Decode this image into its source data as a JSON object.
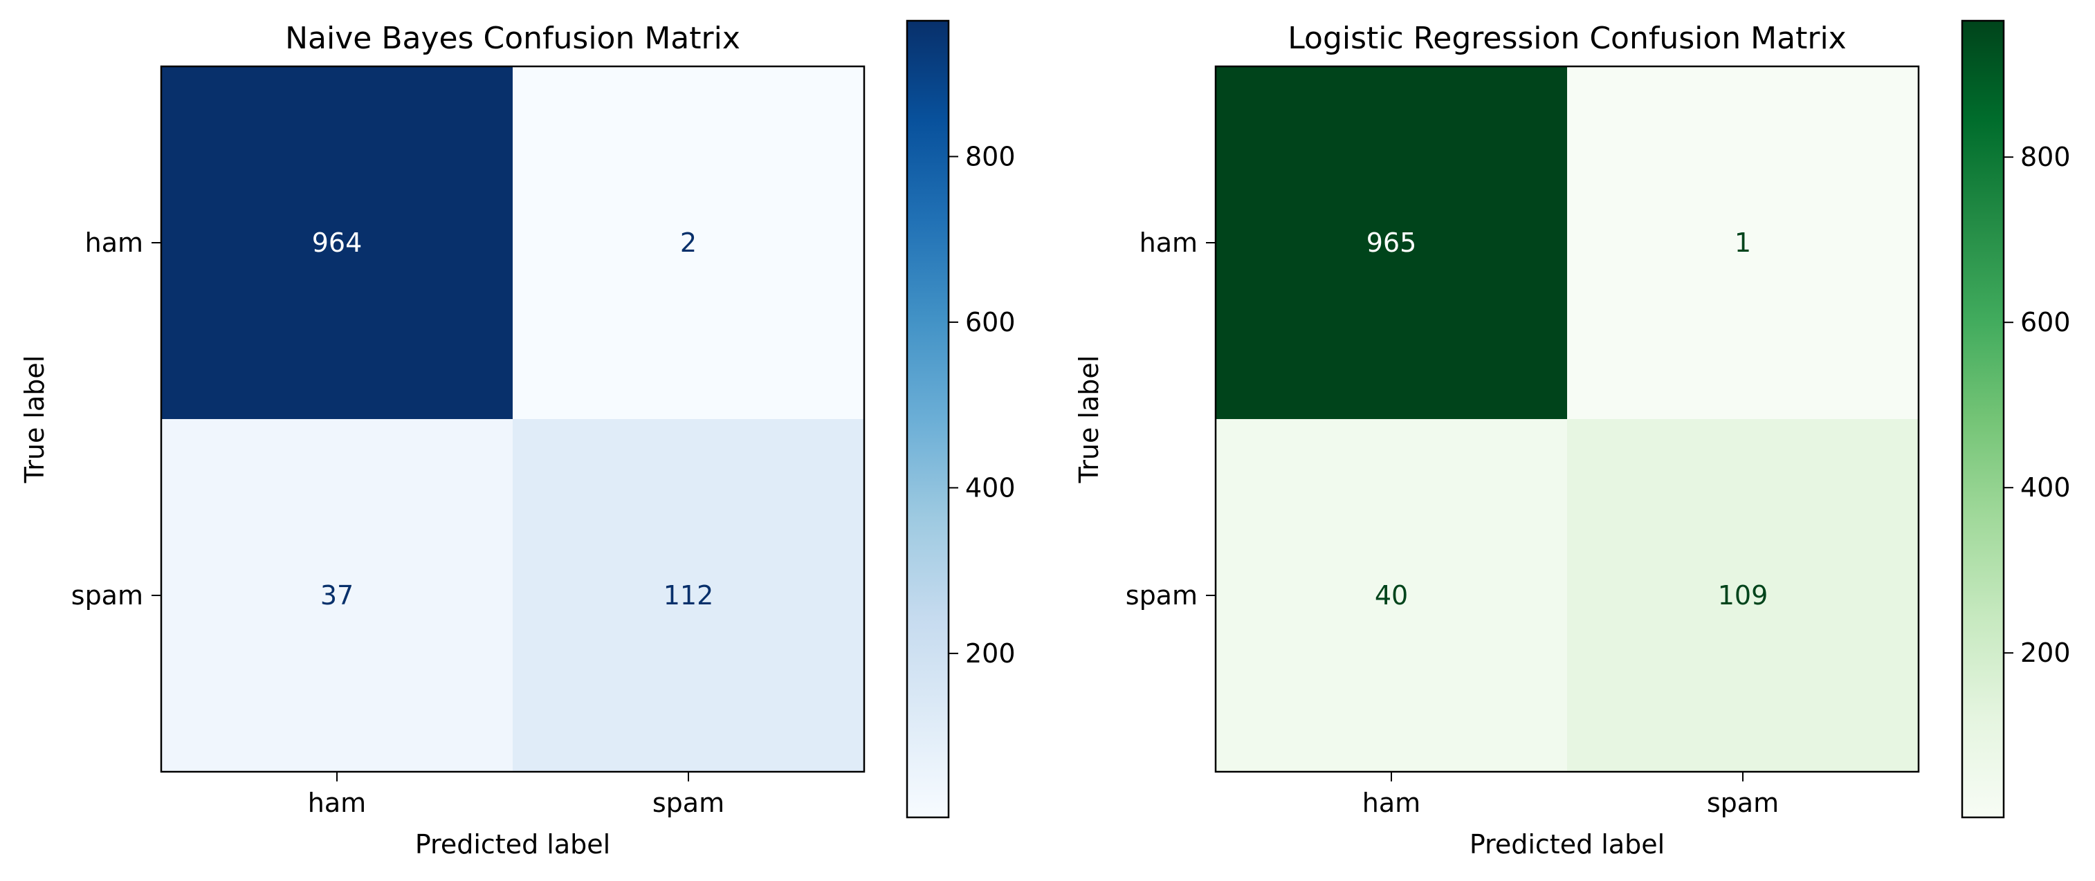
{
  "chart_data": [
    {
      "type": "heatmap",
      "title": "Naive Bayes Confusion Matrix",
      "xlabel": "Predicted label",
      "ylabel": "True label",
      "x_categories": [
        "ham",
        "spam"
      ],
      "y_categories": [
        "ham",
        "spam"
      ],
      "values": [
        [
          964,
          2
        ],
        [
          37,
          112
        ]
      ],
      "colormap": "Blues",
      "low_color": "#f7fbff",
      "high_color": "#08306b",
      "colorbar_range": [
        2,
        964
      ],
      "colorbar_ticks": [
        200,
        400,
        600,
        800
      ]
    },
    {
      "type": "heatmap",
      "title": "Logistic Regression Confusion Matrix",
      "xlabel": "Predicted label",
      "ylabel": "True label",
      "x_categories": [
        "ham",
        "spam"
      ],
      "y_categories": [
        "ham",
        "spam"
      ],
      "values": [
        [
          965,
          1
        ],
        [
          40,
          109
        ]
      ],
      "colormap": "Greens",
      "low_color": "#f7fcf5",
      "high_color": "#00441b",
      "colorbar_range": [
        1,
        965
      ],
      "colorbar_ticks": [
        200,
        400,
        600,
        800
      ]
    }
  ]
}
